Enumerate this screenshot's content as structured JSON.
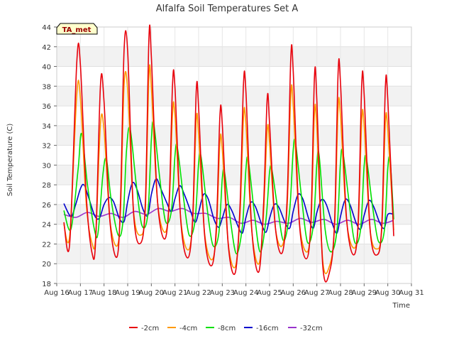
{
  "chart_data": {
    "type": "line",
    "title": "Alfalfa Soil Temperatures Set A",
    "xlabel": "Time",
    "ylabel": "Soil Temperature (C)",
    "badge": "TA_met",
    "xlim": [
      16,
      31
    ],
    "ylim": [
      18,
      44
    ],
    "x_ticks": [
      16,
      17,
      18,
      19,
      20,
      21,
      22,
      23,
      24,
      25,
      26,
      27,
      28,
      29,
      30,
      31
    ],
    "x_tick_labels": [
      "Aug 16",
      "Aug 17",
      "Aug 18",
      "Aug 19",
      "Aug 20",
      "Aug 21",
      "Aug 22",
      "Aug 23",
      "Aug 24",
      "Aug 25",
      "Aug 26",
      "Aug 27",
      "Aug 28",
      "Aug 29",
      "Aug 30",
      "Aug 31"
    ],
    "y_ticks": [
      18,
      20,
      22,
      24,
      26,
      28,
      30,
      32,
      34,
      36,
      38,
      40,
      42,
      44
    ],
    "grid": true,
    "legend_position": "bottom",
    "series": [
      {
        "name": "-2cm",
        "color": "#e8000b",
        "x": [
          16.3,
          16.55,
          16.85,
          17.0,
          17.25,
          17.5,
          17.65,
          17.85,
          18.0,
          18.25,
          18.55,
          18.7,
          18.85,
          19.0,
          19.25,
          19.55,
          19.75,
          19.9,
          20.0,
          20.25,
          20.55,
          20.75,
          20.9,
          21.0,
          21.25,
          21.55,
          21.75,
          21.9,
          22.0,
          22.25,
          22.55,
          22.75,
          22.9,
          23.0,
          23.25,
          23.55,
          23.75,
          23.9,
          24.0,
          24.25,
          24.55,
          24.75,
          24.9,
          25.0,
          25.25,
          25.55,
          25.75,
          25.9,
          26.0,
          26.25,
          26.55,
          26.75,
          26.9,
          27.0,
          27.25,
          27.55,
          27.75,
          27.9,
          28.0,
          28.25,
          28.55,
          28.75,
          28.9,
          29.0,
          29.25,
          29.55,
          29.75,
          29.9,
          30.0,
          30.25
        ],
        "y": [
          24.2,
          22.1,
          40.5,
          40.2,
          26.8,
          21.0,
          22.6,
          38.2,
          36.4,
          24.3,
          20.7,
          26.6,
          41.8,
          41.5,
          25.1,
          22.1,
          26.4,
          43.0,
          41.1,
          26.7,
          22.5,
          26.2,
          38.3,
          37.8,
          24.2,
          20.6,
          24.8,
          37.6,
          35.8,
          23.0,
          19.8,
          23.8,
          35.0,
          34.2,
          22.0,
          19.1,
          25.8,
          38.3,
          37.4,
          23.4,
          19.2,
          26.2,
          36.8,
          34.2,
          23.6,
          21.2,
          27.0,
          41.0,
          39.6,
          24.5,
          20.5,
          24.4,
          39.0,
          36.5,
          19.8,
          19.3,
          24.4,
          39.5,
          38.3,
          24.8,
          20.9,
          24.4,
          38.3,
          37.2,
          23.5,
          20.9,
          24.1,
          38.0,
          36.6,
          22.8
        ]
      },
      {
        "name": "-4cm",
        "color": "#ff9900",
        "x": [
          16.3,
          16.55,
          16.85,
          17.0,
          17.25,
          17.5,
          17.65,
          17.85,
          18.0,
          18.25,
          18.55,
          18.7,
          18.85,
          19.0,
          19.25,
          19.55,
          19.75,
          19.9,
          20.0,
          20.25,
          20.55,
          20.75,
          20.9,
          21.0,
          21.25,
          21.55,
          21.75,
          21.9,
          22.0,
          22.25,
          22.55,
          22.75,
          22.9,
          23.0,
          23.25,
          23.55,
          23.75,
          23.9,
          24.0,
          24.25,
          24.55,
          24.75,
          24.9,
          25.0,
          25.25,
          25.55,
          25.75,
          25.9,
          26.0,
          26.25,
          26.55,
          26.75,
          26.9,
          27.0,
          27.25,
          27.55,
          27.75,
          27.9,
          28.0,
          28.25,
          28.55,
          28.75,
          28.9,
          29.0,
          29.25,
          29.55,
          29.75,
          29.9,
          30.0,
          30.25
        ],
        "y": [
          24.0,
          22.9,
          37.2,
          36.8,
          26.0,
          22.0,
          22.9,
          34.2,
          33.5,
          24.4,
          21.8,
          25.5,
          38.2,
          37.6,
          25.3,
          22.9,
          25.6,
          39.1,
          37.9,
          26.6,
          23.2,
          25.7,
          35.3,
          35.0,
          24.4,
          21.4,
          24.3,
          34.6,
          33.0,
          23.2,
          20.4,
          23.1,
          32.3,
          31.6,
          22.1,
          19.7,
          24.8,
          34.9,
          34.1,
          23.3,
          20.0,
          25.3,
          33.6,
          32.2,
          23.6,
          21.9,
          26.1,
          37.2,
          36.1,
          24.5,
          21.2,
          23.8,
          35.3,
          33.7,
          20.3,
          19.9,
          23.8,
          35.8,
          35.0,
          24.6,
          21.6,
          23.9,
          34.6,
          34.0,
          23.5,
          21.5,
          23.6,
          34.4,
          33.5,
          23.4
        ]
      },
      {
        "name": "-8cm",
        "color": "#00e000",
        "x": [
          16.3,
          16.6,
          16.9,
          17.05,
          17.3,
          17.6,
          17.75,
          17.95,
          18.1,
          18.3,
          18.6,
          18.8,
          18.95,
          19.1,
          19.35,
          19.6,
          19.85,
          20.0,
          20.1,
          20.35,
          20.6,
          20.85,
          21.0,
          21.1,
          21.35,
          21.6,
          21.85,
          22.0,
          22.1,
          22.35,
          22.6,
          22.85,
          23.0,
          23.1,
          23.35,
          23.6,
          23.85,
          24.0,
          24.1,
          24.35,
          24.6,
          24.85,
          25.0,
          25.1,
          25.35,
          25.6,
          25.85,
          26.0,
          26.1,
          26.35,
          26.6,
          26.85,
          27.0,
          27.1,
          27.35,
          27.6,
          27.85,
          28.0,
          28.1,
          28.35,
          28.6,
          28.85,
          29.0,
          29.1,
          29.35,
          29.6,
          29.85,
          30.0,
          30.1,
          30.25
        ],
        "y": [
          25.4,
          23.5,
          29.5,
          33.2,
          28.0,
          23.4,
          23.2,
          29.0,
          30.6,
          26.5,
          22.9,
          24.3,
          31.5,
          33.7,
          28.3,
          23.9,
          25.0,
          32.5,
          34.2,
          28.8,
          24.3,
          25.4,
          31.0,
          31.8,
          26.9,
          22.9,
          24.4,
          30.2,
          30.9,
          25.8,
          21.9,
          23.0,
          28.6,
          29.2,
          24.3,
          21.0,
          23.8,
          29.6,
          30.5,
          25.3,
          21.2,
          24.5,
          29.3,
          29.5,
          25.5,
          22.3,
          25.4,
          31.5,
          32.2,
          26.8,
          22.2,
          23.9,
          30.2,
          30.9,
          23.5,
          21.2,
          23.4,
          30.3,
          31.3,
          26.5,
          22.2,
          23.5,
          29.9,
          30.6,
          25.9,
          22.3,
          23.3,
          29.7,
          30.4,
          24.5
        ]
      },
      {
        "name": "-16cm",
        "color": "#0000cc",
        "x": [
          16.3,
          16.6,
          16.8,
          17.0,
          17.15,
          17.35,
          17.6,
          17.8,
          18.0,
          18.2,
          18.4,
          18.65,
          18.85,
          19.0,
          19.2,
          19.4,
          19.65,
          19.85,
          20.0,
          20.2,
          20.4,
          20.65,
          20.85,
          21.0,
          21.2,
          21.4,
          21.65,
          21.85,
          22.0,
          22.2,
          22.4,
          22.65,
          22.85,
          23.0,
          23.2,
          23.4,
          23.65,
          23.85,
          24.0,
          24.2,
          24.4,
          24.65,
          24.85,
          25.0,
          25.2,
          25.4,
          25.65,
          25.85,
          26.0,
          26.2,
          26.4,
          26.65,
          26.85,
          27.0,
          27.2,
          27.4,
          27.65,
          27.85,
          28.0,
          28.2,
          28.4,
          28.65,
          28.85,
          29.0,
          29.2,
          29.4,
          29.65,
          29.85,
          30.0,
          30.25
        ],
        "y": [
          26.1,
          24.8,
          26.0,
          27.6,
          28.0,
          26.7,
          24.9,
          24.6,
          26.0,
          26.7,
          26.3,
          24.6,
          24.3,
          26.3,
          28.2,
          27.5,
          25.5,
          24.9,
          27.0,
          28.6,
          27.6,
          26.2,
          25.3,
          26.6,
          27.9,
          27.0,
          25.4,
          24.2,
          25.2,
          27.0,
          26.6,
          24.5,
          23.7,
          24.6,
          26.0,
          25.4,
          23.9,
          23.1,
          24.7,
          26.2,
          25.8,
          24.1,
          23.2,
          24.6,
          26.0,
          25.7,
          24.2,
          23.6,
          25.3,
          27.0,
          26.6,
          24.6,
          23.6,
          25.2,
          26.5,
          26.0,
          24.1,
          23.1,
          24.8,
          26.5,
          26.0,
          24.2,
          23.5,
          24.9,
          26.4,
          25.8,
          24.2,
          23.6,
          25.0,
          25.0
        ]
      },
      {
        "name": "-32cm",
        "color": "#9933cc",
        "x": [
          16.3,
          16.8,
          17.3,
          17.8,
          18.3,
          18.8,
          19.3,
          19.8,
          20.3,
          20.8,
          21.3,
          21.8,
          22.3,
          22.8,
          23.3,
          23.8,
          24.3,
          24.8,
          25.3,
          25.8,
          26.3,
          26.8,
          27.3,
          27.8,
          28.3,
          28.8,
          29.3,
          29.8,
          30.25
        ],
        "y": [
          25.0,
          24.7,
          25.2,
          24.8,
          25.1,
          24.7,
          25.3,
          25.0,
          25.6,
          25.3,
          25.6,
          25.1,
          25.1,
          24.6,
          24.7,
          24.1,
          24.4,
          24.0,
          24.3,
          24.1,
          24.6,
          24.2,
          24.5,
          24.0,
          24.4,
          24.0,
          24.5,
          24.1,
          24.4
        ]
      }
    ]
  }
}
